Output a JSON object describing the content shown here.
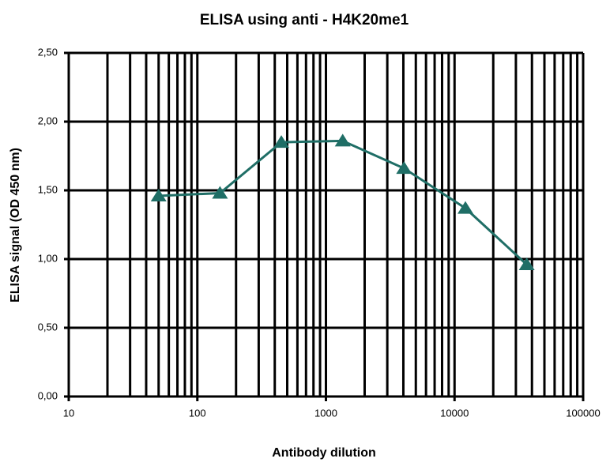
{
  "chart_data": {
    "type": "line",
    "title": "ELISA using anti - H4K20me1",
    "x_label": "Antibody dilution",
    "y_label": "ELISA signal (OD 450 nm)",
    "x": [
      50,
      150,
      450,
      1350,
      4050,
      12150,
      36450
    ],
    "series": [
      {
        "name": "H4K20me1",
        "color": "#1f6e66",
        "values": [
          1.46,
          1.48,
          1.85,
          1.86,
          1.66,
          1.37,
          0.96
        ]
      }
    ],
    "xlim": [
      10,
      100000
    ],
    "xticks": [
      10,
      100,
      1000,
      10000,
      100000
    ],
    "xscale": "log",
    "ylim": [
      0,
      2.5
    ],
    "yticks": [
      {
        "value": 0,
        "label": "0,00"
      },
      {
        "value": 0.5,
        "label": "0,50"
      },
      {
        "value": 1,
        "label": "1,00"
      },
      {
        "value": 1.5,
        "label": "1,50"
      },
      {
        "value": 2,
        "label": "2,00"
      },
      {
        "value": 2.5,
        "label": "2,50"
      }
    ],
    "grid": true
  }
}
